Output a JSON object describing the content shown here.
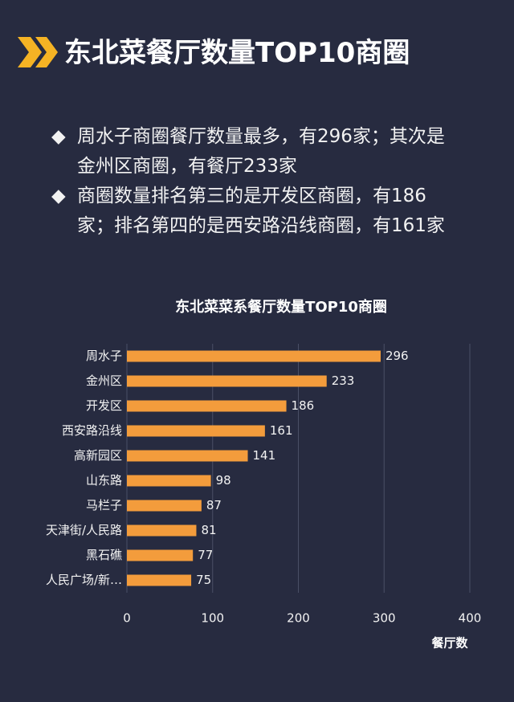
{
  "header": {
    "title": "东北菜餐厅数量TOP10商圈"
  },
  "bullets": [
    "周水子商圈餐厅数量最多，有296家；其次是金州区商圈，有餐厅233家",
    "商圈数量排名第三的是开发区商圈，有186家；排名第四的是西安路沿线商圈，有161家"
  ],
  "chart_data": {
    "type": "bar",
    "orientation": "horizontal",
    "title": "东北菜菜系餐厅数量TOP10商圈",
    "categories": [
      "周水子",
      "金州区",
      "开发区",
      "西安路沿线",
      "高新园区",
      "山东路",
      "马栏子",
      "天津街/人民路",
      "黑石礁",
      "人民广场/新…"
    ],
    "values": [
      296,
      233,
      186,
      161,
      141,
      98,
      87,
      81,
      77,
      75
    ],
    "color": "#f39c3c",
    "xlabel": "餐厅数",
    "xlim": [
      0,
      400
    ],
    "xticks": [
      0,
      100,
      200,
      300,
      400
    ],
    "grid": true,
    "data_labels": true
  }
}
